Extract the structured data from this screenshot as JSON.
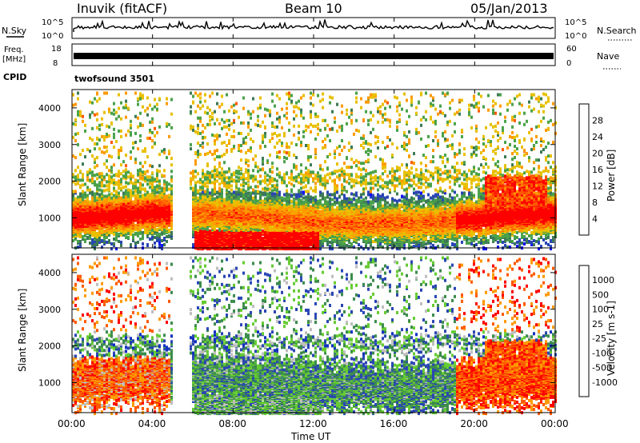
{
  "header": {
    "site": "Inuvik (fitACF)",
    "beam": "Beam 10",
    "date": "05/Jan/2013"
  },
  "strips": {
    "nsky": {
      "label": "N.Sky",
      "ticks": [
        "10^5",
        "10^0"
      ]
    },
    "nsearch": {
      "label": "N.Search"
    },
    "freq": {
      "label_line1": "Freq.",
      "label_line2": "[MHz]",
      "ticks": [
        "18",
        "8"
      ]
    },
    "nave": {
      "label": "Nave",
      "ticks": [
        "60",
        "0"
      ]
    },
    "cpid": {
      "label": "CPID",
      "program": "twofsound 3501"
    }
  },
  "colors": {
    "power": [
      "#1010ff",
      "#2a46b4",
      "#3c7a55",
      "#4aa24a",
      "#e8c000",
      "#ff9a00",
      "#ff5a00",
      "#ff0000"
    ],
    "velocity": [
      "#ff0000",
      "#ff5a00",
      "#ff9a00",
      "#bebebe",
      "#bebebe",
      "#66cc33",
      "#3c8c4c",
      "#2a46b4",
      "#1030c0"
    ],
    "strip_line": "#000000"
  },
  "chart_data": [
    {
      "type": "heatmap",
      "title": "Power",
      "xlabel": "",
      "ylabel": "Slant Range [km]",
      "ylim": [
        180,
        4500
      ],
      "yticks": [
        "1000",
        "2000",
        "3000",
        "4000"
      ],
      "xticks": [
        "00:00",
        "04:00",
        "08:00",
        "12:00",
        "16:00",
        "20:00",
        "00:00"
      ],
      "colorbar": {
        "label": "Power [dB]",
        "ticks": [
          "4",
          "8",
          "12",
          "16",
          "20",
          "24",
          "28"
        ]
      }
    },
    {
      "type": "heatmap",
      "title": "Velocity",
      "xlabel": "Time UT",
      "ylabel": "Slant Range [km]",
      "ylim": [
        180,
        4500
      ],
      "yticks": [
        "1000",
        "2000",
        "3000",
        "4000"
      ],
      "xticks": [
        "00:00",
        "04:00",
        "08:00",
        "12:00",
        "16:00",
        "20:00",
        "00:00"
      ],
      "colorbar": {
        "label": "Velocity [m s-1]",
        "ticks": [
          "1000",
          "500",
          "100",
          "25",
          "-25",
          "-100",
          "-500",
          "-1000"
        ]
      }
    }
  ]
}
